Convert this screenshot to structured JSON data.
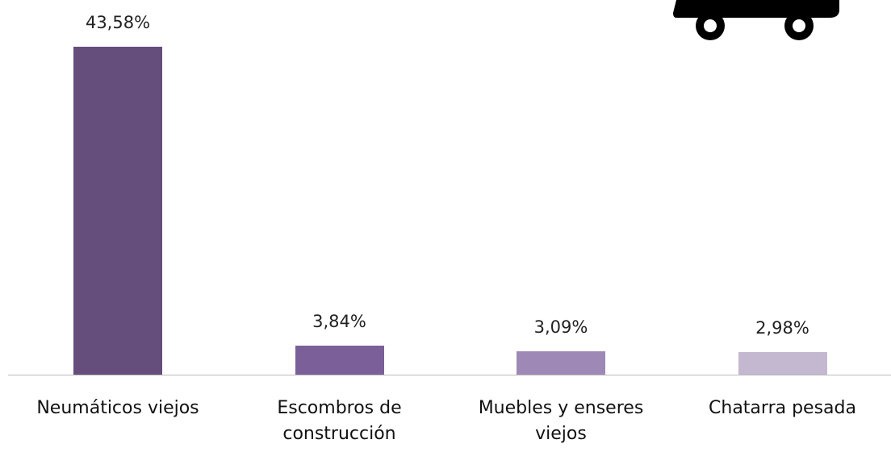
{
  "chart_data": {
    "type": "bar",
    "categories": [
      "Neumáticos viejos",
      "Escombros de construcción",
      "Muebles y enseres viejos",
      "Chatarra pesada"
    ],
    "values": [
      43.58,
      3.84,
      3.09,
      2.98
    ],
    "value_labels": [
      "43,58%",
      "3,84%",
      "3,09%",
      "2,98%"
    ],
    "colors": [
      "#654d7c",
      "#7a5f98",
      "#9e88b6",
      "#c4b8d1"
    ]
  }
}
